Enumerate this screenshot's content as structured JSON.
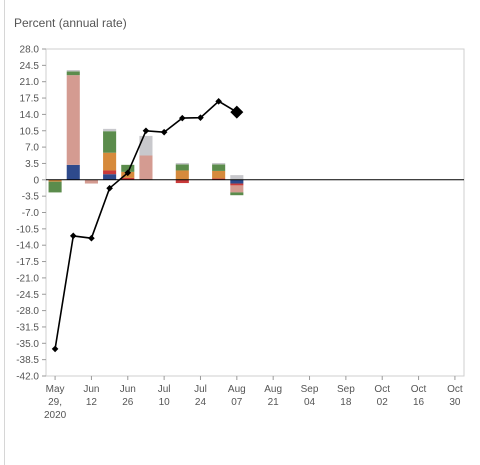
{
  "chart_data": {
    "type": "bar+line",
    "ylabel": "Percent (annual rate)",
    "ylim": [
      -42.0,
      28.0
    ],
    "yticks": [
      "28.0",
      "24.5",
      "21.0",
      "17.5",
      "14.0",
      "10.5",
      "7.0",
      "3.5",
      "0",
      "-3.5",
      "-7.0",
      "-10.5",
      "-14.0",
      "-17.5",
      "-21.0",
      "-24.5",
      "-28.0",
      "-31.5",
      "-35.0",
      "-38.5",
      "-42.0"
    ],
    "xticks": [
      [
        "May",
        "29,",
        "2020"
      ],
      [
        "Jun",
        "12"
      ],
      [
        "Jun",
        "26"
      ],
      [
        "Jul",
        "10"
      ],
      [
        "Jul",
        "24"
      ],
      [
        "Aug",
        "07"
      ],
      [
        "Aug",
        "21"
      ],
      [
        "Sep",
        "04"
      ],
      [
        "Sep",
        "18"
      ],
      [
        "Oct",
        "02"
      ],
      [
        "Oct",
        "16"
      ],
      [
        "Oct",
        "30"
      ]
    ],
    "dates": [
      "May 29",
      "Jun 5",
      "Jun 12",
      "Jun 19",
      "Jun 26",
      "Jul 3",
      "Jul 10",
      "Jul 17",
      "Jul 24",
      "Jul 31",
      "Aug 7",
      "Aug 14",
      "Aug 21",
      "Aug 28",
      "Sep 4",
      "Sep 11",
      "Sep 18",
      "Sep 25",
      "Oct 2",
      "Oct 9",
      "Oct 16",
      "Oct 23",
      "Oct 30"
    ],
    "line": {
      "values": [
        -36.2,
        -12.0,
        -12.5,
        -1.8,
        1.5,
        10.5,
        10.2,
        13.2,
        13.3,
        16.8,
        14.5
      ],
      "last_point_emphasized": true,
      "color": "#000000"
    },
    "bar_series": [
      {
        "color": "#2e4a8c",
        "values": [
          0,
          3.2,
          0,
          1.2,
          0,
          0,
          0,
          0,
          0,
          0,
          -0.8
        ]
      },
      {
        "color": "#c93a3a",
        "values": [
          0,
          0,
          0,
          0.8,
          0.4,
          0,
          0,
          -0.7,
          0,
          0.3,
          -0.4
        ]
      },
      {
        "color": "#d68a3c",
        "values": [
          -0.4,
          0,
          0,
          3.8,
          1.3,
          0,
          0,
          2.0,
          0,
          1.6,
          0
        ]
      },
      {
        "color": "#d49b91",
        "values": [
          0,
          19.2,
          -0.8,
          0,
          0,
          5.2,
          0,
          0,
          0,
          0,
          -1.5
        ]
      },
      {
        "color": "#5b8c4c",
        "values": [
          -2.3,
          0.8,
          0,
          4.6,
          1.5,
          0,
          0,
          1.3,
          0,
          1.4,
          -0.6
        ]
      },
      {
        "color": "#c8c8cc",
        "values": [
          0,
          0.3,
          0,
          0.5,
          0,
          4.2,
          0,
          0.3,
          0,
          0.3,
          1.0
        ]
      }
    ],
    "grid": false,
    "zero_line": true
  }
}
